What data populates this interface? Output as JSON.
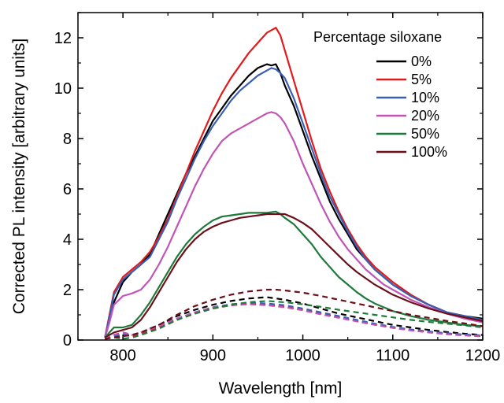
{
  "chart_data": {
    "type": "line",
    "title": "",
    "xlabel": "Wavelength [nm]",
    "ylabel": "Corrected PL intensity [arbitrary units]",
    "xlim": [
      750,
      1200
    ],
    "ylim": [
      0,
      13
    ],
    "x_ticks": [
      "800",
      "900",
      "1000",
      "1100",
      "1200"
    ],
    "y_ticks": [
      "0",
      "2",
      "4",
      "6",
      "8",
      "10",
      "12"
    ],
    "grid": false,
    "legend_title": "Percentage siloxane",
    "legend_placement": "top-right",
    "series": [
      {
        "name": "0%",
        "color": "#000000",
        "style": "solid",
        "x": [
          780,
          785,
          790,
          800,
          810,
          820,
          830,
          840,
          850,
          860,
          870,
          880,
          890,
          900,
          910,
          920,
          930,
          940,
          950,
          960,
          965,
          970,
          975,
          980,
          990,
          1000,
          1010,
          1020,
          1030,
          1040,
          1050,
          1060,
          1070,
          1080,
          1090,
          1100,
          1120,
          1140,
          1160,
          1180,
          1200
        ],
        "y": [
          0.1,
          0.8,
          1.5,
          2.3,
          2.7,
          3.0,
          3.4,
          4.2,
          5.0,
          5.8,
          6.6,
          7.3,
          8.0,
          8.7,
          9.2,
          9.7,
          10.1,
          10.5,
          10.8,
          10.95,
          10.9,
          10.95,
          10.6,
          10.1,
          9.3,
          8.3,
          7.3,
          6.4,
          5.5,
          4.8,
          4.2,
          3.6,
          3.2,
          2.8,
          2.5,
          2.2,
          1.75,
          1.4,
          1.1,
          0.95,
          0.85
        ]
      },
      {
        "name": "5%",
        "color": "#e31a1c",
        "style": "solid",
        "x": [
          780,
          785,
          790,
          800,
          810,
          820,
          830,
          840,
          850,
          860,
          870,
          880,
          890,
          900,
          910,
          920,
          930,
          940,
          950,
          960,
          965,
          970,
          975,
          980,
          990,
          1000,
          1010,
          1020,
          1030,
          1040,
          1050,
          1060,
          1070,
          1080,
          1090,
          1100,
          1120,
          1140,
          1160,
          1180,
          1200
        ],
        "y": [
          0.1,
          1.0,
          1.9,
          2.5,
          2.8,
          3.1,
          3.5,
          4.1,
          4.8,
          5.7,
          6.6,
          7.5,
          8.3,
          9.1,
          9.8,
          10.4,
          10.9,
          11.4,
          11.8,
          12.2,
          12.3,
          12.4,
          12.1,
          11.5,
          10.3,
          9.1,
          7.9,
          6.8,
          5.9,
          5.1,
          4.4,
          3.8,
          3.3,
          2.9,
          2.6,
          2.3,
          1.8,
          1.4,
          1.1,
          0.9,
          0.7
        ]
      },
      {
        "name": "10%",
        "color": "#3a5fb5",
        "style": "solid",
        "x": [
          780,
          785,
          790,
          800,
          810,
          820,
          830,
          840,
          850,
          860,
          870,
          880,
          890,
          900,
          910,
          920,
          930,
          940,
          950,
          960,
          965,
          970,
          975,
          980,
          990,
          1000,
          1010,
          1020,
          1030,
          1040,
          1050,
          1060,
          1070,
          1080,
          1090,
          1100,
          1120,
          1140,
          1160,
          1180,
          1200
        ],
        "y": [
          0.1,
          0.9,
          1.8,
          2.4,
          2.7,
          3.0,
          3.3,
          4.0,
          4.7,
          5.6,
          6.4,
          7.2,
          7.9,
          8.5,
          9.0,
          9.5,
          9.9,
          10.2,
          10.5,
          10.7,
          10.8,
          10.75,
          10.6,
          10.4,
          9.6,
          8.6,
          7.6,
          6.6,
          5.7,
          5.0,
          4.3,
          3.7,
          3.2,
          2.8,
          2.5,
          2.2,
          1.75,
          1.4,
          1.1,
          0.95,
          0.8
        ]
      },
      {
        "name": "20%",
        "color": "#c055b5",
        "style": "solid",
        "x": [
          780,
          785,
          790,
          800,
          810,
          820,
          830,
          840,
          850,
          860,
          870,
          880,
          890,
          900,
          910,
          920,
          930,
          940,
          950,
          960,
          965,
          970,
          975,
          980,
          990,
          1000,
          1010,
          1020,
          1030,
          1040,
          1050,
          1060,
          1070,
          1080,
          1090,
          1100,
          1120,
          1140,
          1160,
          1180,
          1200
        ],
        "y": [
          0.1,
          0.7,
          1.4,
          1.75,
          1.85,
          2.0,
          2.4,
          3.0,
          3.7,
          4.5,
          5.3,
          6.1,
          6.8,
          7.4,
          7.9,
          8.2,
          8.4,
          8.6,
          8.8,
          9.0,
          9.05,
          9.0,
          8.85,
          8.6,
          7.9,
          7.0,
          6.2,
          5.4,
          4.7,
          4.1,
          3.6,
          3.2,
          2.8,
          2.5,
          2.2,
          2.0,
          1.6,
          1.3,
          1.05,
          0.85,
          0.7
        ]
      },
      {
        "name": "50%",
        "color": "#1e7a3a",
        "style": "solid",
        "x": [
          780,
          785,
          790,
          800,
          810,
          820,
          830,
          840,
          850,
          860,
          870,
          880,
          890,
          900,
          910,
          920,
          930,
          940,
          950,
          960,
          970,
          975,
          980,
          990,
          1000,
          1010,
          1020,
          1030,
          1040,
          1050,
          1060,
          1070,
          1080,
          1090,
          1100,
          1120,
          1140,
          1160,
          1180,
          1200
        ],
        "y": [
          0.1,
          0.3,
          0.5,
          0.5,
          0.6,
          1.0,
          1.5,
          2.1,
          2.7,
          3.3,
          3.8,
          4.2,
          4.5,
          4.75,
          4.9,
          4.95,
          5.0,
          5.05,
          5.05,
          5.05,
          5.1,
          5.0,
          4.85,
          4.6,
          4.2,
          3.8,
          3.3,
          2.9,
          2.5,
          2.2,
          1.9,
          1.65,
          1.45,
          1.3,
          1.15,
          0.95,
          0.8,
          0.7,
          0.6,
          0.55
        ]
      },
      {
        "name": "100%",
        "color": "#6b0f1a",
        "style": "solid",
        "x": [
          780,
          785,
          790,
          800,
          810,
          820,
          830,
          840,
          850,
          860,
          870,
          880,
          890,
          900,
          910,
          920,
          930,
          940,
          950,
          960,
          970,
          980,
          990,
          1000,
          1010,
          1020,
          1030,
          1040,
          1050,
          1060,
          1070,
          1080,
          1090,
          1100,
          1120,
          1140,
          1160,
          1180,
          1200
        ],
        "y": [
          0.1,
          0.2,
          0.3,
          0.4,
          0.5,
          0.8,
          1.3,
          1.9,
          2.5,
          3.1,
          3.6,
          4.0,
          4.3,
          4.5,
          4.65,
          4.75,
          4.85,
          4.9,
          4.95,
          5.0,
          5.0,
          5.0,
          4.85,
          4.65,
          4.4,
          4.05,
          3.7,
          3.35,
          3.0,
          2.7,
          2.45,
          2.2,
          2.0,
          1.8,
          1.5,
          1.25,
          1.05,
          0.9,
          0.75
        ]
      },
      {
        "color": "#000000",
        "style": "dashed",
        "x": [
          780,
          790,
          800,
          810,
          820,
          840,
          860,
          880,
          900,
          920,
          940,
          960,
          980,
          1000,
          1020,
          1040,
          1060,
          1080,
          1100,
          1120,
          1140,
          1160,
          1180,
          1200
        ],
        "y": [
          0.05,
          0.2,
          0.3,
          0.2,
          0.3,
          0.6,
          0.95,
          1.2,
          1.4,
          1.55,
          1.65,
          1.7,
          1.6,
          1.45,
          1.25,
          1.05,
          0.9,
          0.75,
          0.6,
          0.5,
          0.4,
          0.32,
          0.25,
          0.2
        ]
      },
      {
        "color": "#e31a1c",
        "style": "dashed",
        "x": [
          780,
          790,
          800,
          810,
          820,
          840,
          860,
          880,
          900,
          920,
          940,
          960,
          980,
          1000,
          1020,
          1040,
          1060,
          1080,
          1100,
          1120,
          1140,
          1160,
          1180,
          1200
        ],
        "y": [
          0.05,
          0.15,
          0.2,
          0.15,
          0.25,
          0.5,
          0.8,
          1.05,
          1.25,
          1.38,
          1.43,
          1.4,
          1.32,
          1.2,
          1.05,
          0.9,
          0.75,
          0.62,
          0.5,
          0.4,
          0.32,
          0.25,
          0.2,
          0.15
        ]
      },
      {
        "color": "#3a5fb5",
        "style": "dashed",
        "x": [
          780,
          790,
          800,
          810,
          820,
          840,
          860,
          880,
          900,
          920,
          940,
          960,
          980,
          1000,
          1020,
          1040,
          1060,
          1080,
          1100,
          1120,
          1140,
          1160,
          1180,
          1200
        ],
        "y": [
          0.05,
          0.15,
          0.25,
          0.2,
          0.3,
          0.55,
          0.85,
          1.1,
          1.3,
          1.42,
          1.48,
          1.45,
          1.38,
          1.25,
          1.1,
          0.95,
          0.8,
          0.65,
          0.52,
          0.42,
          0.34,
          0.27,
          0.22,
          0.18
        ]
      },
      {
        "color": "#c055b5",
        "style": "dashed",
        "x": [
          780,
          790,
          800,
          810,
          820,
          840,
          860,
          880,
          900,
          920,
          940,
          960,
          980,
          1000,
          1020,
          1040,
          1060,
          1080,
          1100,
          1120,
          1140,
          1160,
          1180,
          1200
        ],
        "y": [
          0.05,
          0.2,
          0.3,
          0.2,
          0.3,
          0.55,
          0.85,
          1.1,
          1.28,
          1.38,
          1.42,
          1.38,
          1.3,
          1.18,
          1.02,
          0.88,
          0.74,
          0.6,
          0.48,
          0.38,
          0.3,
          0.23,
          0.18,
          0.14
        ]
      },
      {
        "color": "#1e7a3a",
        "style": "dashed",
        "x": [
          780,
          790,
          800,
          810,
          820,
          840,
          860,
          880,
          900,
          920,
          940,
          960,
          980,
          1000,
          1020,
          1040,
          1060,
          1080,
          1100,
          1120,
          1140,
          1160,
          1180,
          1200
        ],
        "y": [
          0.05,
          0.1,
          0.05,
          0.1,
          0.2,
          0.45,
          0.8,
          1.05,
          1.25,
          1.4,
          1.5,
          1.55,
          1.5,
          1.42,
          1.32,
          1.2,
          1.1,
          1.0,
          0.9,
          0.8,
          0.72,
          0.65,
          0.58,
          0.5
        ]
      },
      {
        "color": "#6b0f1a",
        "style": "dashed",
        "x": [
          780,
          790,
          800,
          810,
          820,
          840,
          860,
          880,
          900,
          920,
          940,
          960,
          970,
          980,
          1000,
          1020,
          1040,
          1060,
          1080,
          1100,
          1120,
          1140,
          1160,
          1180,
          1200
        ],
        "y": [
          0.05,
          0.1,
          0.15,
          0.2,
          0.3,
          0.6,
          1.0,
          1.35,
          1.6,
          1.8,
          1.93,
          2.0,
          2.0,
          1.97,
          1.88,
          1.75,
          1.6,
          1.45,
          1.3,
          1.15,
          1.0,
          0.88,
          0.76,
          0.66,
          0.55
        ]
      }
    ]
  }
}
